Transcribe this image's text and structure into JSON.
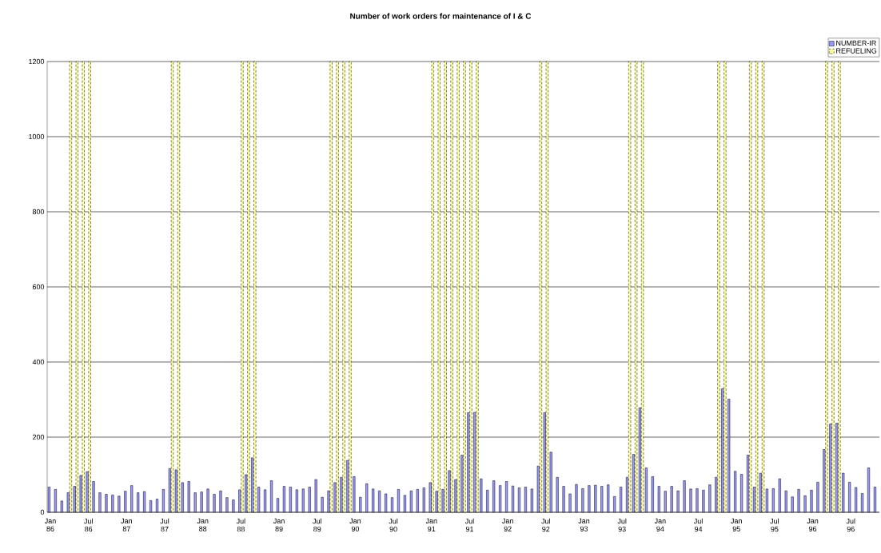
{
  "chart_data": {
    "type": "bar",
    "title": "Number of work orders for maintenance of I & C",
    "categories": [
      "Jan 86",
      null,
      null,
      null,
      null,
      null,
      "Jul 86",
      null,
      null,
      null,
      null,
      null,
      "Jan 87",
      null,
      null,
      null,
      null,
      null,
      "Jul 87",
      null,
      null,
      null,
      null,
      null,
      "Jan 88",
      null,
      null,
      null,
      null,
      null,
      "Jul 88",
      null,
      null,
      null,
      null,
      null,
      "Jan 89",
      null,
      null,
      null,
      null,
      null,
      "Jul 89",
      null,
      null,
      null,
      null,
      null,
      "Jan 90",
      null,
      null,
      null,
      null,
      null,
      "Jul 90",
      null,
      null,
      null,
      null,
      null,
      "Jan 91",
      null,
      null,
      null,
      null,
      null,
      "Jul 91",
      null,
      null,
      null,
      null,
      null,
      "Jan 92",
      null,
      null,
      null,
      null,
      null,
      "Jul 92",
      null,
      null,
      null,
      null,
      null,
      "Jan 93",
      null,
      null,
      null,
      null,
      null,
      "Jul 93",
      null,
      null,
      null,
      null,
      null,
      "Jan 94",
      null,
      null,
      null,
      null,
      null,
      "Jul 94",
      null,
      null,
      null,
      null,
      null,
      "Jan 95",
      null,
      null,
      null,
      null,
      null,
      "Jul 95",
      null,
      null,
      null,
      null,
      null,
      "Jan 96",
      null,
      null,
      null,
      null,
      null,
      "Jul 96",
      null,
      null,
      null,
      null
    ],
    "series": [
      {
        "name": "NUMBER-IR",
        "color": "#9999ff",
        "line_style": "solid",
        "values": [
          67,
          61,
          30,
          52,
          69,
          98,
          108,
          82,
          52,
          48,
          46,
          43,
          56,
          71,
          52,
          55,
          31,
          35,
          61,
          116,
          113,
          79,
          82,
          52,
          54,
          62,
          48,
          57,
          39,
          33,
          60,
          100,
          145,
          67,
          60,
          84,
          37,
          69,
          67,
          60,
          62,
          67,
          87,
          40,
          57,
          79,
          93,
          138,
          95,
          40,
          76,
          62,
          57,
          49,
          39,
          61,
          45,
          57,
          61,
          65,
          79,
          56,
          61,
          111,
          87,
          152,
          265,
          266,
          89,
          59,
          84,
          71,
          82,
          70,
          65,
          67,
          62,
          123,
          265,
          160,
          93,
          69,
          49,
          74,
          63,
          71,
          72,
          69,
          73,
          42,
          67,
          93,
          154,
          278,
          118,
          95,
          69,
          56,
          69,
          57,
          84,
          62,
          63,
          59,
          73,
          93,
          329,
          301,
          109,
          101,
          152,
          67,
          104,
          62,
          63,
          89,
          57,
          41,
          61,
          44,
          59,
          80,
          167,
          235,
          237,
          104,
          80,
          66,
          50,
          118,
          67
        ]
      },
      {
        "name": "REFUELING",
        "color": "#ffff99",
        "line_style": "dashed",
        "values": [
          null,
          null,
          null,
          1200,
          1200,
          1200,
          1200,
          null,
          null,
          null,
          null,
          null,
          null,
          null,
          null,
          null,
          null,
          null,
          null,
          1200,
          1200,
          null,
          null,
          null,
          null,
          null,
          null,
          null,
          null,
          null,
          1200,
          1200,
          1200,
          null,
          null,
          null,
          null,
          null,
          null,
          null,
          null,
          null,
          null,
          null,
          1200,
          1200,
          1200,
          1200,
          null,
          null,
          null,
          null,
          null,
          null,
          null,
          null,
          null,
          null,
          null,
          null,
          1200,
          1200,
          1200,
          1200,
          1200,
          1200,
          1200,
          1200,
          null,
          null,
          null,
          null,
          null,
          null,
          null,
          null,
          null,
          1200,
          1200,
          null,
          null,
          null,
          null,
          null,
          null,
          null,
          null,
          null,
          null,
          null,
          null,
          1200,
          1200,
          1200,
          null,
          null,
          null,
          null,
          null,
          null,
          null,
          null,
          null,
          null,
          null,
          1200,
          1200,
          null,
          null,
          null,
          1200,
          1200,
          1200,
          null,
          null,
          null,
          null,
          null,
          null,
          null,
          null,
          null,
          1200,
          1200,
          1200,
          null,
          null,
          null,
          null,
          null,
          null
        ]
      }
    ],
    "ylim": [
      0,
      1200
    ],
    "yticks": [
      0,
      200,
      400,
      600,
      800,
      1000,
      1200
    ],
    "grid": "y",
    "legend": "top right"
  }
}
